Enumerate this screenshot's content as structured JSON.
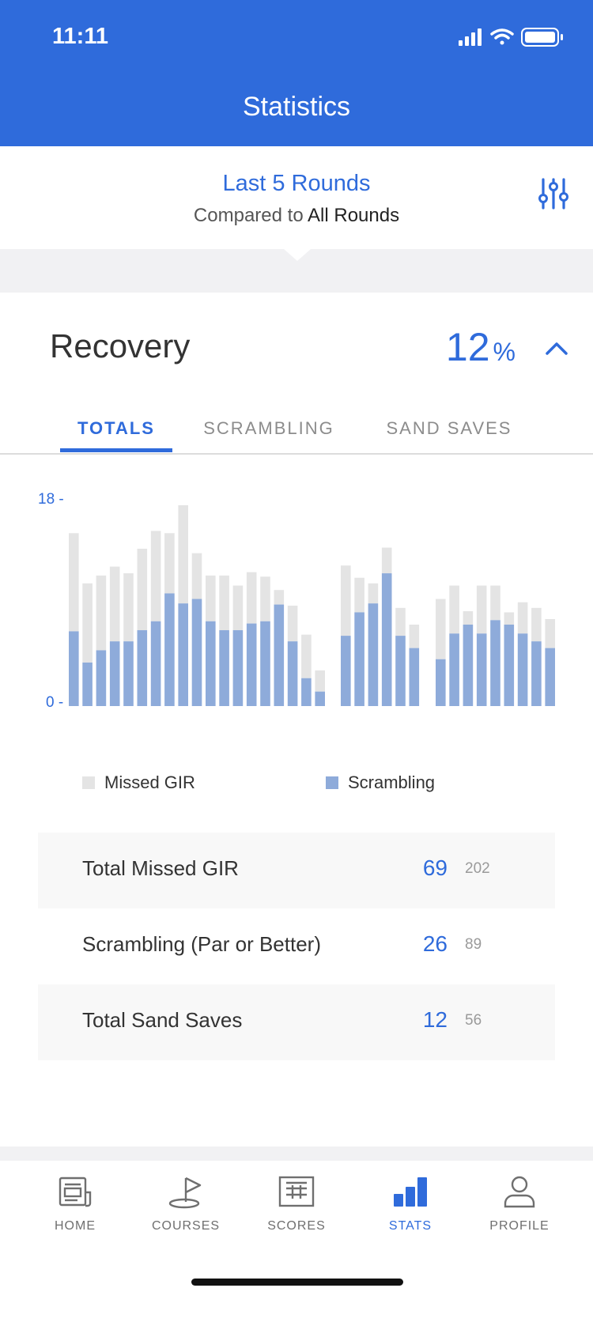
{
  "status_bar": {
    "time": "11:11",
    "icons": [
      "signal-icon",
      "wifi-icon",
      "battery-icon"
    ]
  },
  "header": {
    "title": "Statistics"
  },
  "filter": {
    "primary": "Last 5 Rounds",
    "compared_prefix": "Compared to",
    "compared_value": "All Rounds",
    "icon": "filter-sliders-icon"
  },
  "section": {
    "title": "Recovery",
    "percent_value": "12",
    "percent_unit": "%",
    "icon": "chevron-up-icon"
  },
  "tabs": [
    {
      "label": "TOTALS",
      "active": true
    },
    {
      "label": "SCRAMBLING",
      "active": false
    },
    {
      "label": "SAND SAVES",
      "active": false
    }
  ],
  "chart_data": {
    "type": "bar",
    "stacked": true,
    "y_ticks": [
      "18 -",
      "0 -"
    ],
    "ylim": [
      0,
      18
    ],
    "groups": [
      {
        "scrambling": [
          6.7,
          3.9,
          5.0,
          5.8,
          5.8,
          6.8,
          7.6,
          10.1,
          9.2,
          9.6,
          7.6,
          6.8,
          6.8,
          7.4,
          7.6,
          9.1,
          5.8,
          2.5,
          1.3
        ],
        "missed_gir": [
          8.8,
          7.1,
          6.7,
          6.7,
          6.1,
          7.3,
          8.1,
          5.4,
          8.8,
          4.1,
          4.1,
          4.9,
          4.0,
          4.6,
          4.0,
          1.3,
          3.2,
          3.9,
          1.9
        ]
      },
      {
        "scrambling": [
          6.3,
          8.4,
          9.2,
          11.9,
          6.3,
          5.2
        ],
        "missed_gir": [
          6.3,
          3.1,
          1.8,
          2.3,
          2.5,
          2.1
        ]
      },
      {
        "scrambling": [
          4.2,
          6.5,
          7.3,
          6.5,
          7.7,
          7.3,
          6.5,
          5.8,
          5.2
        ],
        "missed_gir": [
          5.4,
          4.3,
          1.2,
          4.3,
          3.1,
          1.1,
          2.8,
          3.0,
          2.6
        ]
      }
    ],
    "series": [
      {
        "name": "Missed GIR",
        "color": "#e4e4e4"
      },
      {
        "name": "Scrambling",
        "color": "#8eabda"
      }
    ]
  },
  "legend": [
    {
      "label": "Missed GIR",
      "color": "#e4e4e4"
    },
    {
      "label": "Scrambling",
      "color": "#8eabda"
    }
  ],
  "totals": [
    {
      "label": "Total Missed GIR",
      "value": "69",
      "compare": "202"
    },
    {
      "label": "Scrambling (Par or Better)",
      "value": "26",
      "compare": "89"
    },
    {
      "label": "Total Sand Saves",
      "value": "12",
      "compare": "56"
    }
  ],
  "tabbar": [
    {
      "label": "HOME",
      "icon": "home-icon",
      "active": false
    },
    {
      "label": "COURSES",
      "icon": "courses-flag-icon",
      "active": false
    },
    {
      "label": "SCORES",
      "icon": "scorecard-icon",
      "active": false
    },
    {
      "label": "STATS",
      "icon": "stats-bars-icon",
      "active": true
    },
    {
      "label": "PROFILE",
      "icon": "profile-icon",
      "active": false
    }
  ],
  "colors": {
    "brand": "#2f6bdb",
    "missed_gir": "#e4e4e4",
    "scrambling": "#8eabda"
  }
}
